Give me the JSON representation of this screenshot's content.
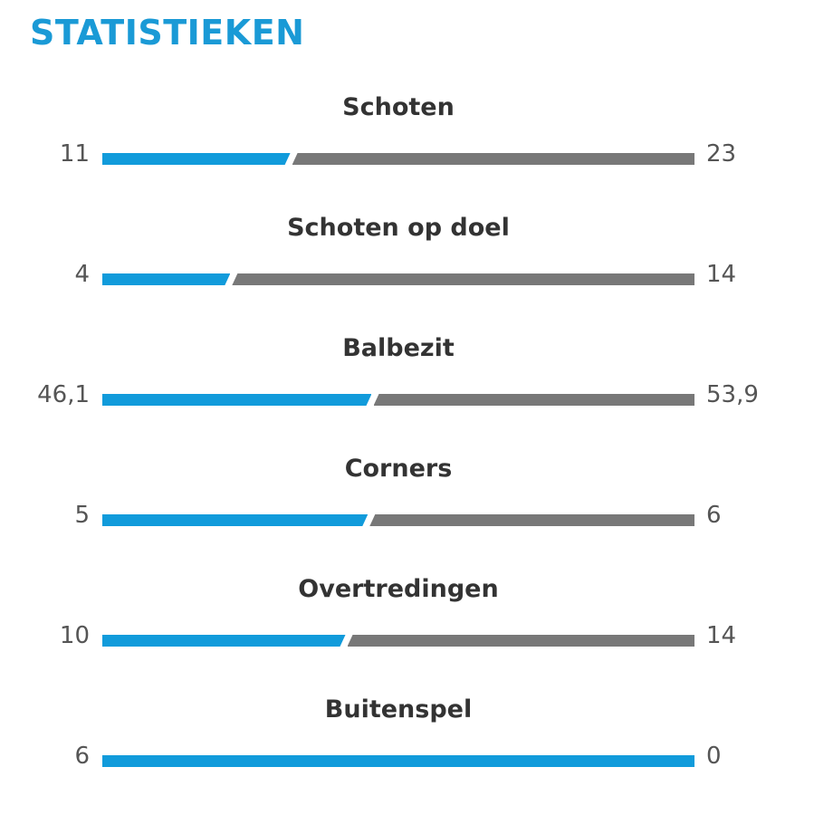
{
  "title": "STATISTIEKEN",
  "colors": {
    "home": "#119bdb",
    "away": "#787878",
    "title": "#1a9ad6"
  },
  "chart_data": {
    "type": "bar",
    "orientation": "horizontal-split",
    "categories": [
      "Schoten",
      "Schoten op doel",
      "Balbezit",
      "Corners",
      "Overtredingen",
      "Buitenspel"
    ],
    "series": [
      {
        "values": [
          11,
          4,
          46.1,
          5,
          10,
          6
        ],
        "labels": [
          "11",
          "4",
          "46,1",
          "5",
          "10",
          "6"
        ]
      },
      {
        "values": [
          23,
          14,
          53.9,
          6,
          14,
          0
        ],
        "labels": [
          "23",
          "14",
          "53,9",
          "6",
          "14",
          "0"
        ]
      }
    ]
  }
}
